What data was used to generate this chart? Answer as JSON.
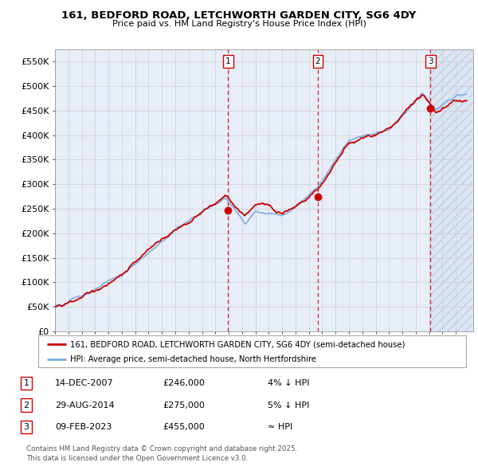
{
  "title_line1": "161, BEDFORD ROAD, LETCHWORTH GARDEN CITY, SG6 4DY",
  "title_line2": "Price paid vs. HM Land Registry's House Price Index (HPI)",
  "ylabel_ticks": [
    "£0",
    "£50K",
    "£100K",
    "£150K",
    "£200K",
    "£250K",
    "£300K",
    "£350K",
    "£400K",
    "£450K",
    "£500K",
    "£550K"
  ],
  "ytick_values": [
    0,
    50000,
    100000,
    150000,
    200000,
    250000,
    300000,
    350000,
    400000,
    450000,
    500000,
    550000
  ],
  "ylim": [
    0,
    575000
  ],
  "sale_dates_num": [
    2007.96,
    2014.66,
    2023.11
  ],
  "sale_prices": [
    246000,
    275000,
    455000
  ],
  "sale_labels": [
    "1",
    "2",
    "3"
  ],
  "legend_line1": "161, BEDFORD ROAD, LETCHWORTH GARDEN CITY, SG6 4DY (semi-detached house)",
  "legend_line2": "HPI: Average price, semi-detached house, North Hertfordshire",
  "table_rows": [
    [
      "1",
      "14-DEC-2007",
      "£246,000",
      "4% ↓ HPI"
    ],
    [
      "2",
      "29-AUG-2014",
      "£275,000",
      "5% ↓ HPI"
    ],
    [
      "3",
      "09-FEB-2023",
      "£455,000",
      "≈ HPI"
    ]
  ],
  "footnote": "Contains HM Land Registry data © Crown copyright and database right 2025.\nThis data is licensed under the Open Government Licence v3.0.",
  "sale_color": "#cc0000",
  "hpi_color": "#7aabdc",
  "bg_color": "#ffffff",
  "plot_bg_color": "#e8eef8",
  "grid_color": "#cccccc",
  "xmin": 1995.0,
  "xmax": 2026.0
}
